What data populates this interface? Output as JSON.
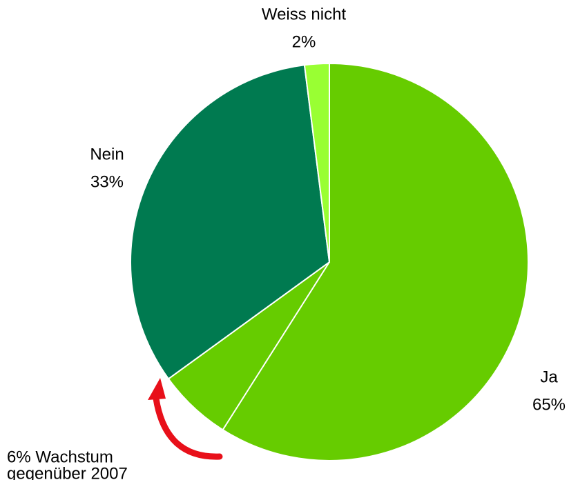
{
  "chart_data": {
    "type": "pie",
    "categories": [
      "Ja",
      "Nein",
      "Weiss nicht"
    ],
    "values": [
      65,
      33,
      2
    ],
    "value_labels": [
      "65%",
      "33%",
      "2%"
    ],
    "colors": [
      "#66cc00",
      "#007a50",
      "#99ff33"
    ],
    "annotation": {
      "lines": [
        "6% Wachstum",
        "gegenüber 2007"
      ],
      "value": 6
    }
  }
}
